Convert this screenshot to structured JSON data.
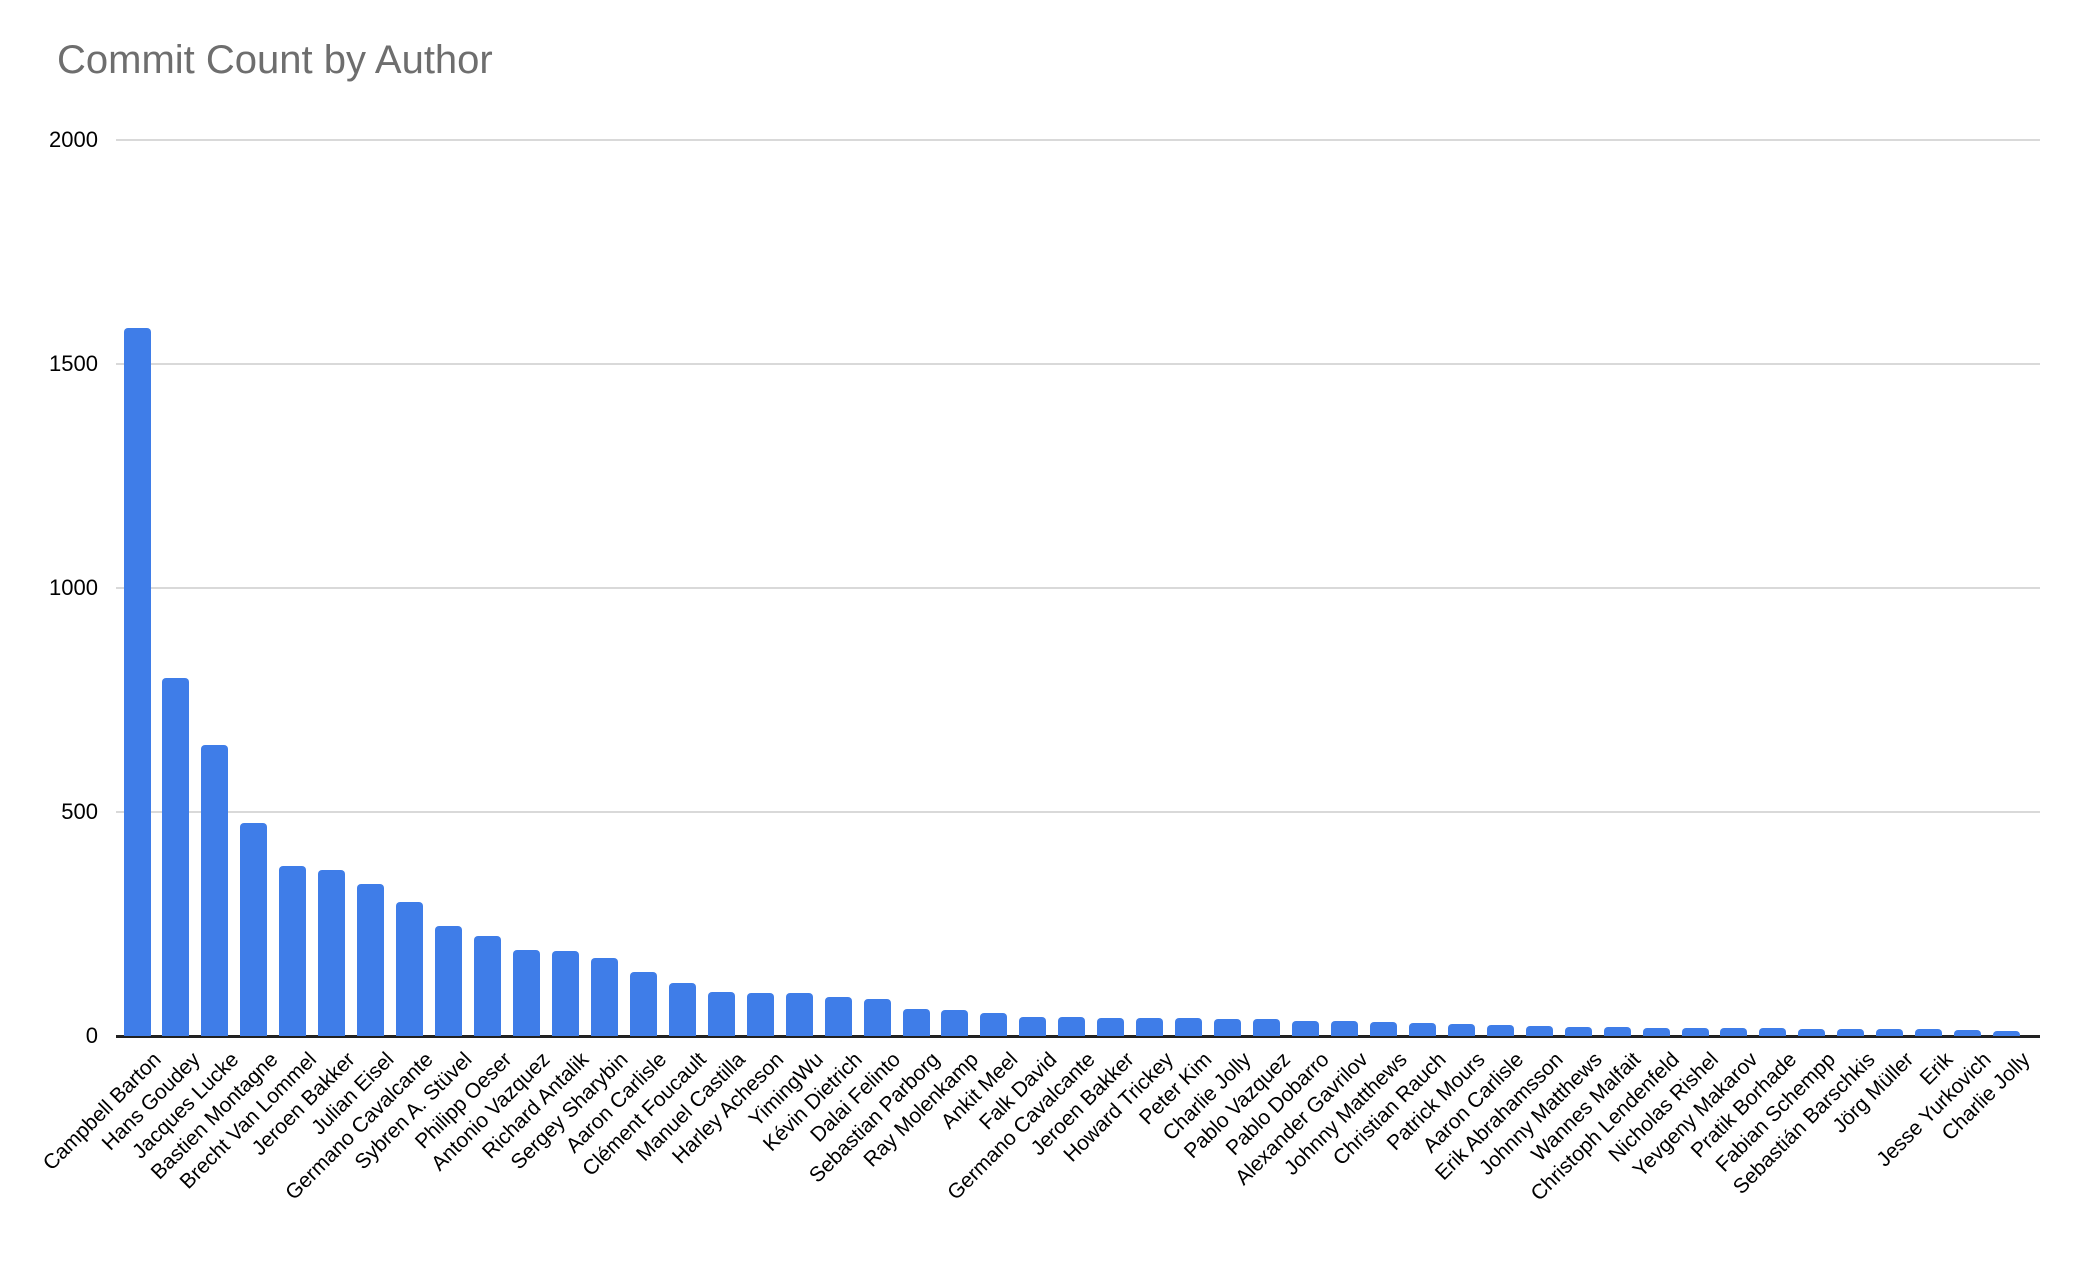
{
  "chart": {
    "title": "Commit Count by Author",
    "title_color": "#6e6e6e",
    "background_color": "#ffffff",
    "bar_color": "#3f7de8",
    "gridline_color": "#d9d9d9",
    "axis_line_color": "#212121",
    "tick_label_color": "#000000"
  },
  "chart_data": {
    "type": "bar",
    "title": "Commit Count by Author",
    "xlabel": "",
    "ylabel": "",
    "ylim": [
      0,
      2000
    ],
    "yticks": [
      0,
      500,
      1000,
      1500,
      2000
    ],
    "grid": true,
    "legend": false,
    "categories": [
      "Campbell Barton",
      "Hans Goudey",
      "Jacques Lucke",
      "Bastien Montagne",
      "Brecht Van Lommel",
      "Jeroen Bakker",
      "Julian Eisel",
      "Germano Cavalcante",
      "Sybren A. Stüvel",
      "Philipp Oeser",
      "Antonio Vazquez",
      "Richard Antalik",
      "Sergey Sharybin",
      "Aaron Carlisle",
      "Clément Foucault",
      "Manuel Castilla",
      "Harley Acheson",
      "YimingWu",
      "Kévin Dietrich",
      "Dalai Felinto",
      "Sebastian Parborg",
      "Ray Molenkamp",
      "Ankit Meel",
      "Falk David",
      "Germano Cavalcante",
      "Jeroen Bakker",
      "Howard Trickey",
      "Peter Kim",
      "Charlie Jolly",
      "Pablo Vazquez",
      "Pablo Dobarro",
      "Alexander Gavrilov",
      "Johnny Matthews",
      "Christian Rauch",
      "Patrick Mours",
      "Aaron Carlisle",
      "Erik Abrahamsson",
      "Johnny Matthews",
      "Wannes Malfait",
      "Christoph Lendenfeld",
      "Nicholas Rishel",
      "Yevgeny Makarov",
      "Pratik Borhade",
      "Fabian Schempp",
      "Sebastián Barschkis",
      "Jörg Müller",
      "Erik",
      "Jesse Yurkovich",
      "Charlie Jolly"
    ],
    "values": [
      1580,
      800,
      650,
      475,
      380,
      370,
      340,
      300,
      245,
      223,
      192,
      190,
      173,
      142,
      119,
      98,
      96,
      95,
      88,
      83,
      60,
      57,
      52,
      43,
      42,
      41,
      40,
      40,
      38,
      37,
      34,
      33,
      32,
      28,
      26,
      24,
      22,
      20,
      20,
      18,
      18,
      18,
      17,
      16,
      16,
      16,
      15,
      14,
      12
    ]
  }
}
